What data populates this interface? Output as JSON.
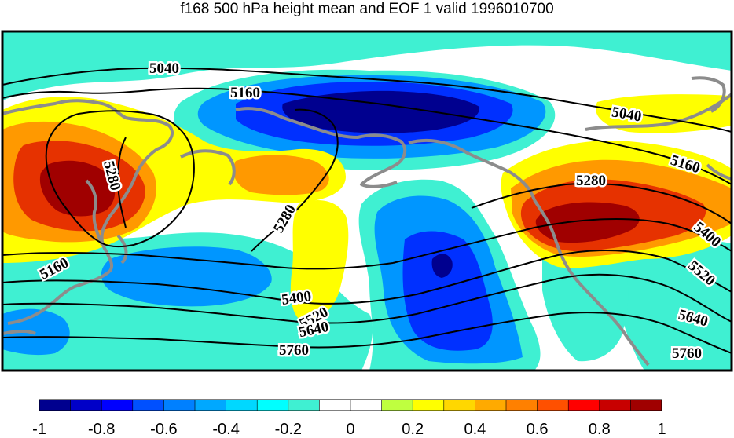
{
  "title": "f168 500 hPa height mean and EOF 1 valid 1996010700",
  "colors": {
    "neg_strong": "#00008f",
    "neg_blue": "#0030ff",
    "neg_mid": "#0096ff",
    "neg_light": "#3ff0d2",
    "pos_yellow": "#ffff00",
    "pos_orange": "#ff9900",
    "pos_red": "#e63200",
    "pos_dark": "#a00000",
    "coast": "#8c8c8c",
    "contour": "#000000"
  },
  "colorbar": {
    "swatches": [
      "#00008f",
      "#0000c8",
      "#0000ff",
      "#0050ff",
      "#0080ff",
      "#00a8ff",
      "#00d8ff",
      "#00ffff",
      "#3ff0d2",
      "#ffffff",
      "#ffffff",
      "#bfff3f",
      "#ffff00",
      "#ffd700",
      "#ffaa00",
      "#ff8000",
      "#ff5000",
      "#ff0000",
      "#c80000",
      "#a00000"
    ],
    "tick_labels": [
      "-1",
      "-0.8",
      "-0.6",
      "-0.4",
      "-0.2",
      "0",
      "0.2",
      "0.4",
      "0.6",
      "0.8",
      "1"
    ]
  },
  "contours": {
    "labels": [
      "5040",
      "5160",
      "5040",
      "5160",
      "5280",
      "5280",
      "5280",
      "5160",
      "5400",
      "5520",
      "5640",
      "5760",
      "5400",
      "5520",
      "5640",
      "5760"
    ]
  }
}
